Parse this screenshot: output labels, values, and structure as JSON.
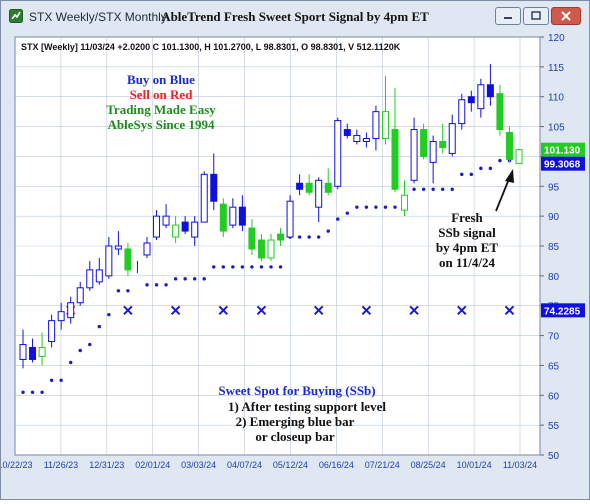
{
  "window": {
    "app_title": "STX Weekly/STX Monthly",
    "chart_title": "AbleTrend Fresh Sweet Sport Signal by 4pm ET",
    "icon": "chart-app-icon",
    "controls": [
      "minimize-icon",
      "restore-icon",
      "close-icon"
    ]
  },
  "colors": {
    "blue_bar": "#1010dd",
    "green_bar": "#22cc22",
    "dots": "#1a1acc",
    "x_mark": "#1a1acc",
    "first_x_mark": "#ee2222",
    "grid": "#b9c8d8",
    "axis_text": "#1f3fae"
  },
  "chart_data": {
    "type": "candlestick",
    "info_line": "STX [Weekly] 11/03/24 +2.0200 C 101.1300, H 101.2700, L 98.8301, O 98.8301, V 512.1120K",
    "ylim": [
      50,
      120
    ],
    "y_ticks": [
      50,
      55,
      60,
      65,
      70,
      75,
      80,
      85,
      90,
      95,
      100,
      105,
      110,
      115,
      120
    ],
    "grid": true,
    "x_tick_labels": [
      "10/22/23",
      "11/26/23",
      "12/31/23",
      "02/01/24",
      "03/03/24",
      "04/07/24",
      "05/12/24",
      "06/16/24",
      "07/21/24",
      "08/25/24",
      "10/01/24",
      "11/03/24"
    ],
    "price_tags": [
      {
        "label": "101.130",
        "value": 101.13,
        "color": "#22cc22"
      },
      {
        "label": "99.3068",
        "value": 99.3068,
        "color": "#1010dd"
      },
      {
        "label": "74.2285",
        "value": 74.2285,
        "color": "#1010dd"
      }
    ],
    "bars": [
      {
        "o": 66.0,
        "h": 71.0,
        "l": 64.5,
        "c": 68.5,
        "kind": "hollow-blue"
      },
      {
        "o": 68.0,
        "h": 69.5,
        "l": 65.5,
        "c": 66.0,
        "kind": "blue"
      },
      {
        "o": 66.5,
        "h": 70.5,
        "l": 65.0,
        "c": 68.0,
        "kind": "hollow-green"
      },
      {
        "o": 69.0,
        "h": 73.5,
        "l": 68.0,
        "c": 72.5,
        "kind": "hollow-blue"
      },
      {
        "o": 72.5,
        "h": 75.5,
        "l": 71.0,
        "c": 74.0,
        "kind": "hollow-blue"
      },
      {
        "o": 73.0,
        "h": 76.5,
        "l": 72.0,
        "c": 75.5,
        "kind": "hollow-blue"
      },
      {
        "o": 75.5,
        "h": 79.0,
        "l": 75.0,
        "c": 78.0,
        "kind": "hollow-blue"
      },
      {
        "o": 78.0,
        "h": 82.5,
        "l": 77.5,
        "c": 81.0,
        "kind": "hollow-blue"
      },
      {
        "o": 81.0,
        "h": 83.0,
        "l": 78.5,
        "c": 79.0,
        "kind": "hollow-blue"
      },
      {
        "o": 80.0,
        "h": 86.5,
        "l": 79.5,
        "c": 85.0,
        "kind": "hollow-blue"
      },
      {
        "o": 84.5,
        "h": 87.5,
        "l": 83.5,
        "c": 85.0,
        "kind": "hollow-blue"
      },
      {
        "o": 84.5,
        "h": 85.5,
        "l": 80.0,
        "c": 81.0,
        "kind": "green"
      },
      {
        "o": 81.0,
        "h": 82.5,
        "l": 80.5,
        "c": 81.5,
        "kind": "none"
      },
      {
        "o": 83.5,
        "h": 86.5,
        "l": 83.0,
        "c": 85.5,
        "kind": "hollow-blue"
      },
      {
        "o": 86.5,
        "h": 91.0,
        "l": 86.0,
        "c": 90.0,
        "kind": "hollow-blue"
      },
      {
        "o": 90.0,
        "h": 92.0,
        "l": 88.0,
        "c": 88.5,
        "kind": "hollow-blue"
      },
      {
        "o": 88.5,
        "h": 90.0,
        "l": 85.5,
        "c": 86.5,
        "kind": "hollow-green"
      },
      {
        "o": 89.0,
        "h": 90.0,
        "l": 87.0,
        "c": 87.5,
        "kind": "blue"
      },
      {
        "o": 86.5,
        "h": 90.0,
        "l": 85.0,
        "c": 89.0,
        "kind": "hollow-blue"
      },
      {
        "o": 89.0,
        "h": 97.5,
        "l": 89.0,
        "c": 97.0,
        "kind": "hollow-blue"
      },
      {
        "o": 97.0,
        "h": 100.5,
        "l": 91.0,
        "c": 92.5,
        "kind": "blue"
      },
      {
        "o": 92.0,
        "h": 93.0,
        "l": 86.5,
        "c": 87.5,
        "kind": "green"
      },
      {
        "o": 88.5,
        "h": 93.0,
        "l": 88.0,
        "c": 91.5,
        "kind": "hollow-blue"
      },
      {
        "o": 91.5,
        "h": 93.5,
        "l": 87.5,
        "c": 88.5,
        "kind": "blue"
      },
      {
        "o": 88.0,
        "h": 89.5,
        "l": 83.5,
        "c": 84.5,
        "kind": "green"
      },
      {
        "o": 86.0,
        "h": 87.0,
        "l": 82.5,
        "c": 83.0,
        "kind": "green"
      },
      {
        "o": 86.0,
        "h": 87.0,
        "l": 82.5,
        "c": 83.0,
        "kind": "hollow-green"
      },
      {
        "o": 87.0,
        "h": 88.0,
        "l": 85.0,
        "c": 86.0,
        "kind": "green"
      },
      {
        "o": 86.5,
        "h": 93.5,
        "l": 86.5,
        "c": 92.5,
        "kind": "hollow-blue"
      },
      {
        "o": 94.5,
        "h": 97.0,
        "l": 93.5,
        "c": 95.5,
        "kind": "blue"
      },
      {
        "o": 95.5,
        "h": 97.0,
        "l": 93.5,
        "c": 94.0,
        "kind": "green"
      },
      {
        "o": 91.5,
        "h": 96.5,
        "l": 89.0,
        "c": 96.0,
        "kind": "hollow-blue"
      },
      {
        "o": 95.5,
        "h": 98.0,
        "l": 93.5,
        "c": 94.0,
        "kind": "green"
      },
      {
        "o": 95.0,
        "h": 106.5,
        "l": 94.5,
        "c": 106.0,
        "kind": "hollow-blue"
      },
      {
        "o": 104.5,
        "h": 105.5,
        "l": 103.0,
        "c": 103.5,
        "kind": "blue"
      },
      {
        "o": 103.5,
        "h": 104.5,
        "l": 102.0,
        "c": 102.5,
        "kind": "hollow-blue"
      },
      {
        "o": 103.0,
        "h": 104.0,
        "l": 101.5,
        "c": 102.5,
        "kind": "hollow-blue"
      },
      {
        "o": 103.0,
        "h": 108.5,
        "l": 101.0,
        "c": 107.5,
        "kind": "hollow-blue"
      },
      {
        "o": 107.5,
        "h": 113.5,
        "l": 102.0,
        "c": 103.0,
        "kind": "hollow-green"
      },
      {
        "o": 104.5,
        "h": 111.5,
        "l": 94.0,
        "c": 94.5,
        "kind": "green"
      },
      {
        "o": 93.5,
        "h": 96.0,
        "l": 90.0,
        "c": 91.0,
        "kind": "hollow-green"
      },
      {
        "o": 96.0,
        "h": 106.5,
        "l": 95.5,
        "c": 104.5,
        "kind": "hollow-blue"
      },
      {
        "o": 104.5,
        "h": 105.5,
        "l": 99.5,
        "c": 100.0,
        "kind": "green"
      },
      {
        "o": 99.0,
        "h": 103.5,
        "l": 95.5,
        "c": 102.5,
        "kind": "hollow-blue"
      },
      {
        "o": 102.5,
        "h": 105.5,
        "l": 100.5,
        "c": 101.5,
        "kind": "green"
      },
      {
        "o": 100.5,
        "h": 107.0,
        "l": 100.0,
        "c": 105.5,
        "kind": "hollow-blue"
      },
      {
        "o": 105.5,
        "h": 110.5,
        "l": 104.5,
        "c": 109.5,
        "kind": "hollow-blue"
      },
      {
        "o": 109.0,
        "h": 111.0,
        "l": 107.5,
        "c": 110.0,
        "kind": "blue"
      },
      {
        "o": 108.0,
        "h": 113.0,
        "l": 106.5,
        "c": 112.0,
        "kind": "hollow-blue"
      },
      {
        "o": 112.0,
        "h": 115.5,
        "l": 108.5,
        "c": 110.0,
        "kind": "blue"
      },
      {
        "o": 110.5,
        "h": 112.0,
        "l": 103.5,
        "c": 104.5,
        "kind": "green"
      },
      {
        "o": 104.0,
        "h": 105.0,
        "l": 99.0,
        "c": 99.5,
        "kind": "green"
      },
      {
        "o": 98.8301,
        "h": 101.27,
        "l": 98.8301,
        "c": 101.13,
        "kind": "hollow-green"
      }
    ],
    "support_dots": [
      {
        "start": 0,
        "end": 2,
        "value": 60.5
      },
      {
        "start": 3,
        "end": 4,
        "value": 62.5
      },
      {
        "start": 5,
        "end": 5,
        "value": 65.5
      },
      {
        "start": 6,
        "end": 6,
        "value": 67.5
      },
      {
        "start": 7,
        "end": 7,
        "value": 68.5
      },
      {
        "start": 8,
        "end": 8,
        "value": 71.5
      },
      {
        "start": 9,
        "end": 9,
        "value": 73.5
      },
      {
        "start": 10,
        "end": 11,
        "value": 77.5
      },
      {
        "start": 13,
        "end": 15,
        "value": 78.5
      },
      {
        "start": 16,
        "end": 19,
        "value": 79.5
      },
      {
        "start": 20,
        "end": 27,
        "value": 81.5
      },
      {
        "start": 28,
        "end": 29,
        "value": 86.5
      },
      {
        "start": 30,
        "end": 31,
        "value": 86.5
      },
      {
        "start": 32,
        "end": 32,
        "value": 87.5
      },
      {
        "start": 33,
        "end": 33,
        "value": 89.5
      },
      {
        "start": 34,
        "end": 34,
        "value": 90.5
      },
      {
        "start": 35,
        "end": 39,
        "value": 91.5
      },
      {
        "start": 40,
        "end": 40,
        "value": 93.0
      },
      {
        "start": 41,
        "end": 45,
        "value": 94.5
      },
      {
        "start": 46,
        "end": 47,
        "value": 97.0
      },
      {
        "start": 48,
        "end": 49,
        "value": 98.0
      },
      {
        "start": 50,
        "end": 52,
        "value": 99.3
      }
    ],
    "x_marks": {
      "value": 74.2285,
      "bars": [
        5,
        11,
        16,
        21,
        25,
        31,
        36,
        41,
        46,
        51
      ],
      "first_is_red": true
    },
    "annotations": [
      {
        "lines": [
          "Buy on Blue"
        ],
        "color": "#1a2ad0"
      },
      {
        "lines": [
          "Sell on Red"
        ],
        "color": "#ee2222"
      },
      {
        "lines": [
          "Trading Made Easy",
          "AbleSys Since 1994"
        ],
        "color": "#1e8c1e"
      },
      {
        "lines": [
          "Fresh",
          "SSb signal",
          "by 4pm ET",
          "on 11/4/24"
        ],
        "color": "#111111"
      },
      {
        "lines": [
          "Sweet Spot for Buying (SSb)"
        ],
        "color": "#1a2ad0"
      },
      {
        "lines": [
          "1) After testing support level",
          "2) Emerging blue bar",
          "or closeup bar"
        ],
        "color": "#111111"
      }
    ]
  }
}
